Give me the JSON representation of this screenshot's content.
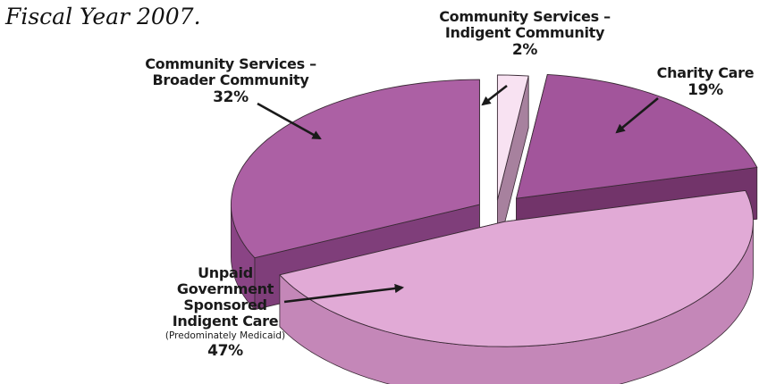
{
  "caption": "Fiscal Year 2007.",
  "chart_data": {
    "type": "pie",
    "style": "3d-exploded",
    "slices": [
      {
        "label_lines": [
          "Community Services –",
          "Indigent Community"
        ],
        "value": 2,
        "value_label": "2%",
        "top_color": "#f8e2f2",
        "side_color": "#dfacd3"
      },
      {
        "label_lines": [
          "Charity Care"
        ],
        "value": 19,
        "value_label": "19%",
        "top_color": "#a2559b",
        "side_color": "#7a3872"
      },
      {
        "label_lines": [
          "Unpaid",
          "Government",
          "Sponsored",
          "Indigent Care"
        ],
        "note": "(Predominately Medicaid)",
        "value": 47,
        "value_label": "47%",
        "top_color": "#e1aad6",
        "side_color": "#c487b8"
      },
      {
        "label_lines": [
          "Community Services –",
          "Broader Community"
        ],
        "value": 32,
        "value_label": "32%",
        "top_color": "#ac60a4",
        "side_color": "#8a4485"
      }
    ]
  }
}
